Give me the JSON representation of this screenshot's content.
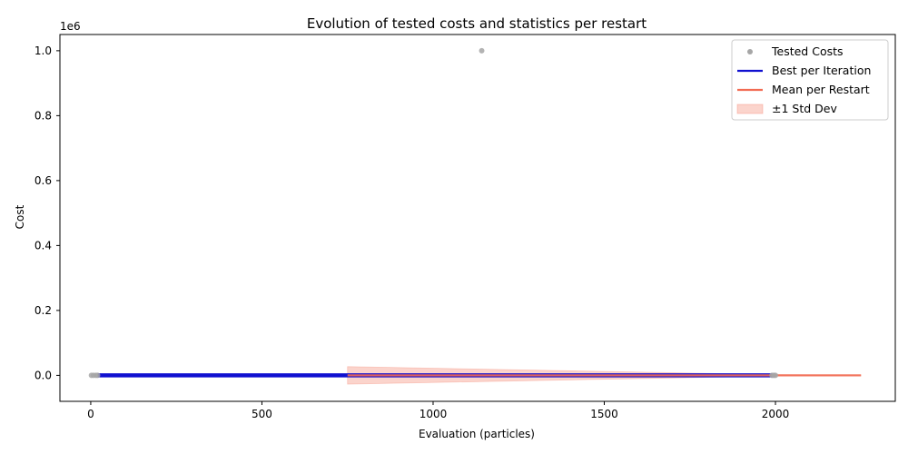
{
  "chart_data": {
    "type": "scatter",
    "title": "Evolution of tested costs and statistics per restart",
    "xlabel": "Evaluation (particles)",
    "ylabel": "Cost",
    "y_offset_label": "1e6",
    "xlim": [
      -90,
      2350
    ],
    "ylim": [
      -80000,
      1050000
    ],
    "x_ticks": [
      0,
      500,
      1000,
      1500,
      2000
    ],
    "y_ticks": [
      0,
      200000,
      400000,
      600000,
      800000,
      1000000
    ],
    "y_tick_labels": [
      "0.0",
      "0.2",
      "0.4",
      "0.6",
      "0.8",
      "1.0"
    ],
    "grid": false,
    "legend_position": "top-right",
    "colors": {
      "tested": "#a6a6a6",
      "best": "#1010d0",
      "mean": "#f26b52",
      "band": "#f9c6bb"
    },
    "series": [
      {
        "name": "Tested Costs",
        "kind": "scatter",
        "points": [
          [
            2,
            0
          ],
          [
            8,
            0
          ],
          [
            15,
            0
          ],
          [
            20,
            0
          ],
          [
            1142,
            1000000
          ],
          [
            1990,
            0
          ],
          [
            1995,
            0
          ],
          [
            2000,
            0
          ]
        ]
      },
      {
        "name": "Best per Iteration",
        "kind": "line",
        "x": [
          20,
          2000
        ],
        "y": [
          0,
          0
        ]
      },
      {
        "name": "Mean per Restart",
        "kind": "line",
        "x": [
          750,
          2250
        ],
        "y": [
          0,
          0
        ]
      },
      {
        "name": "±1 Std Dev",
        "kind": "band",
        "x": [
          750,
          2000,
          2250
        ],
        "lower": [
          -27000,
          -2000,
          0
        ],
        "upper": [
          27000,
          2000,
          0
        ]
      }
    ]
  }
}
